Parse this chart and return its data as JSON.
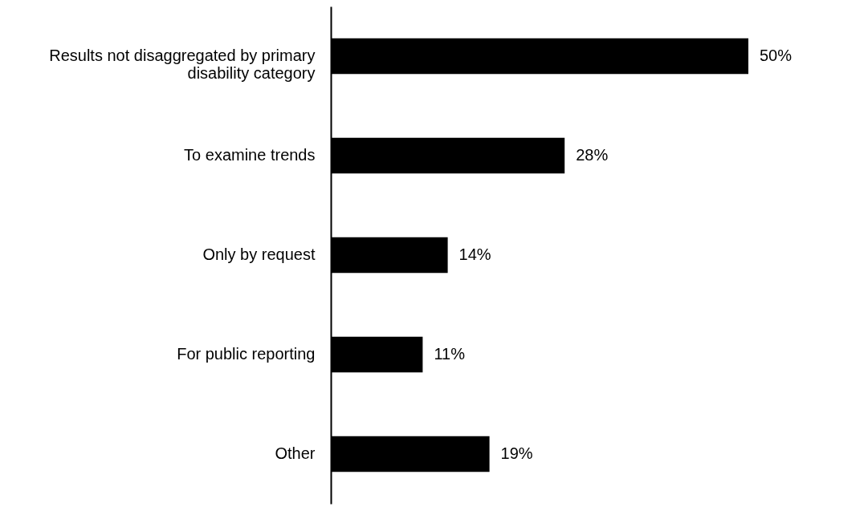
{
  "chart_data": {
    "type": "bar",
    "orientation": "horizontal",
    "categories": [
      "Results not disaggregated by primary disability category",
      "To examine trends",
      "Only by request",
      "For public reporting",
      "Other"
    ],
    "values": [
      50,
      28,
      14,
      11,
      19
    ],
    "value_labels": [
      "50%",
      "28%",
      "14%",
      "11%",
      "19%"
    ],
    "color": "#000000"
  }
}
